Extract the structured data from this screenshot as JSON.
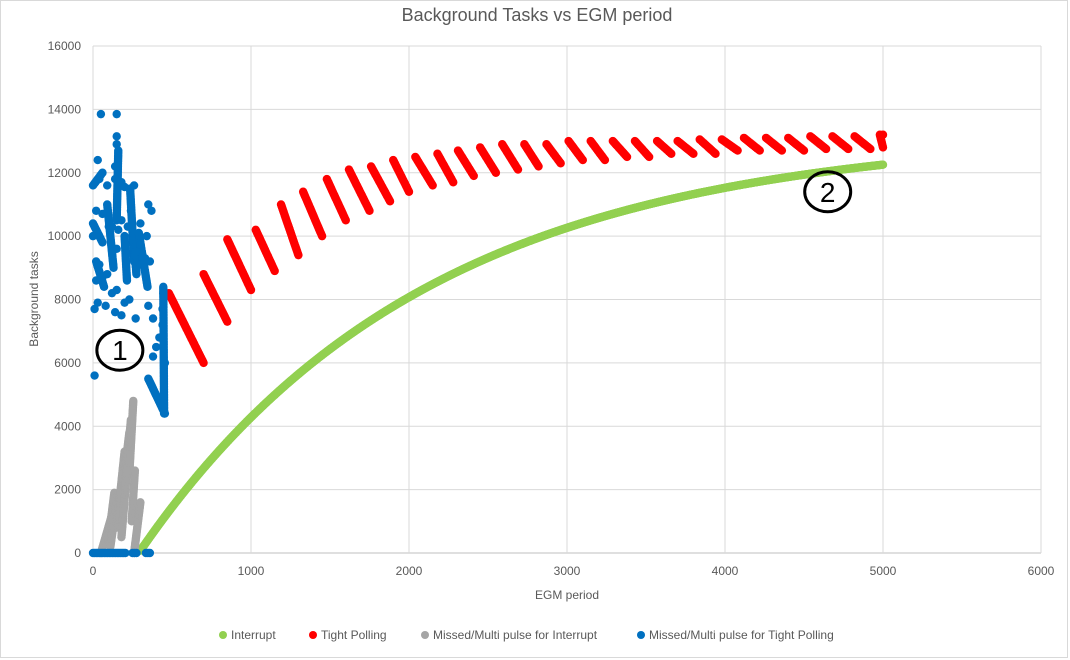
{
  "chart_data": {
    "type": "scatter",
    "title": "Background Tasks vs EGM period",
    "xlabel": "EGM period",
    "ylabel": "Background tasks",
    "xlim": [
      0,
      6000
    ],
    "ylim": [
      0,
      16000
    ],
    "x_ticks": [
      "0",
      "1000",
      "2000",
      "3000",
      "4000",
      "5000",
      "6000"
    ],
    "y_ticks": [
      "0",
      "2000",
      "4000",
      "6000",
      "8000",
      "10000",
      "12000",
      "14000",
      "16000"
    ],
    "grid": true,
    "legend_position": "bottom",
    "series": [
      {
        "name": "Interrupt",
        "color": "#92d050",
        "curve": {
          "kind": "saturating",
          "x_start": 300,
          "x_end": 5000,
          "y_asymptote": 13250,
          "x_zero": 290,
          "c": 1820
        }
      },
      {
        "name": "Tight Polling",
        "color": "#ff0000",
        "segments": [
          [
            [
              480,
              8200
            ],
            [
              700,
              6000
            ]
          ],
          [
            [
              700,
              8800
            ],
            [
              850,
              7300
            ]
          ],
          [
            [
              850,
              9900
            ],
            [
              1000,
              8300
            ]
          ],
          [
            [
              1030,
              10200
            ],
            [
              1150,
              8900
            ]
          ],
          [
            [
              1190,
              11000
            ],
            [
              1300,
              9400
            ]
          ],
          [
            [
              1330,
              11400
            ],
            [
              1450,
              10000
            ]
          ],
          [
            [
              1480,
              11800
            ],
            [
              1600,
              10500
            ]
          ],
          [
            [
              1620,
              12100
            ],
            [
              1750,
              10800
            ]
          ],
          [
            [
              1760,
              12200
            ],
            [
              1880,
              11100
            ]
          ],
          [
            [
              1900,
              12400
            ],
            [
              2000,
              11400
            ]
          ],
          [
            [
              2040,
              12500
            ],
            [
              2150,
              11600
            ]
          ],
          [
            [
              2180,
              12600
            ],
            [
              2280,
              11700
            ]
          ],
          [
            [
              2310,
              12700
            ],
            [
              2410,
              11900
            ]
          ],
          [
            [
              2450,
              12800
            ],
            [
              2550,
              12000
            ]
          ],
          [
            [
              2590,
              12900
            ],
            [
              2690,
              12100
            ]
          ],
          [
            [
              2730,
              12900
            ],
            [
              2820,
              12200
            ]
          ],
          [
            [
              2870,
              12900
            ],
            [
              2960,
              12300
            ]
          ],
          [
            [
              3010,
              13000
            ],
            [
              3100,
              12400
            ]
          ],
          [
            [
              3150,
              13000
            ],
            [
              3240,
              12400
            ]
          ],
          [
            [
              3290,
              13000
            ],
            [
              3380,
              12500
            ]
          ],
          [
            [
              3430,
              13000
            ],
            [
              3520,
              12500
            ]
          ],
          [
            [
              3570,
              13000
            ],
            [
              3660,
              12600
            ]
          ],
          [
            [
              3700,
              13000
            ],
            [
              3800,
              12600
            ]
          ],
          [
            [
              3840,
              13050
            ],
            [
              3940,
              12600
            ]
          ],
          [
            [
              3980,
              13050
            ],
            [
              4080,
              12700
            ]
          ],
          [
            [
              4120,
              13100
            ],
            [
              4220,
              12700
            ]
          ],
          [
            [
              4260,
              13100
            ],
            [
              4360,
              12700
            ]
          ],
          [
            [
              4400,
              13100
            ],
            [
              4500,
              12700
            ]
          ],
          [
            [
              4540,
              13150
            ],
            [
              4640,
              12750
            ]
          ],
          [
            [
              4680,
              13150
            ],
            [
              4780,
              12750
            ]
          ],
          [
            [
              4820,
              13150
            ],
            [
              4920,
              12750
            ]
          ],
          [
            [
              4980,
              13200
            ],
            [
              5000,
              12800
            ]
          ]
        ],
        "points": [
          [
            5000,
            13200
          ]
        ]
      },
      {
        "name": "Missed/Multi pulse for Interrupt",
        "color": "#a5a5a5",
        "segments": [
          [
            [
              50,
              0
            ],
            [
              120,
              1200
            ]
          ],
          [
            [
              95,
              300
            ],
            [
              135,
              1900
            ]
          ],
          [
            [
              110,
              200
            ],
            [
              155,
              1800
            ]
          ],
          [
            [
              150,
              800
            ],
            [
              200,
              3200
            ]
          ],
          [
            [
              175,
              1500
            ],
            [
              230,
              3800
            ]
          ],
          [
            [
              200,
              2000
            ],
            [
              240,
              4200
            ]
          ],
          [
            [
              230,
              2500
            ],
            [
              255,
              4800
            ]
          ],
          [
            [
              245,
              1000
            ],
            [
              265,
              2600
            ]
          ],
          [
            [
              180,
              500
            ],
            [
              215,
              2600
            ]
          ],
          [
            [
              260,
              0
            ],
            [
              300,
              1600
            ]
          ]
        ]
      },
      {
        "name": "Missed/Multi pulse for Tight Polling",
        "color": "#0070c0",
        "segments": [
          [
            [
              0,
              0
            ],
            [
              205,
              0
            ]
          ],
          [
            [
              250,
              0
            ],
            [
              275,
              0
            ]
          ],
          [
            [
              335,
              0
            ],
            [
              360,
              0
            ]
          ],
          [
            [
              350,
              5500
            ],
            [
              455,
              4400
            ]
          ],
          [
            [
              445,
              8400
            ],
            [
              450,
              4400
            ]
          ],
          [
            [
              200,
              10000
            ],
            [
              215,
              8600
            ]
          ],
          [
            [
              235,
              11500
            ],
            [
              260,
              9200
            ]
          ],
          [
            [
              255,
              10000
            ],
            [
              275,
              8800
            ]
          ],
          [
            [
              290,
              10100
            ],
            [
              345,
              8400
            ]
          ],
          [
            [
              90,
              11000
            ],
            [
              130,
              9000
            ]
          ],
          [
            [
              0,
              11600
            ],
            [
              60,
              12000
            ]
          ],
          [
            [
              0,
              10400
            ],
            [
              60,
              9800
            ]
          ],
          [
            [
              150,
              10500
            ],
            [
              160,
              12700
            ]
          ],
          [
            [
              20,
              9200
            ],
            [
              70,
              8400
            ]
          ]
        ],
        "points": [
          [
            50,
            13850
          ],
          [
            150,
            13850
          ],
          [
            150,
            13150
          ],
          [
            150,
            12900
          ],
          [
            30,
            12400
          ],
          [
            140,
            12200
          ],
          [
            180,
            11700
          ],
          [
            260,
            11600
          ],
          [
            200,
            11550
          ],
          [
            140,
            11800
          ],
          [
            90,
            11600
          ],
          [
            40,
            11800
          ],
          [
            20,
            10800
          ],
          [
            60,
            10700
          ],
          [
            100,
            10300
          ],
          [
            120,
            10300
          ],
          [
            160,
            10200
          ],
          [
            180,
            10500
          ],
          [
            220,
            10300
          ],
          [
            240,
            10800
          ],
          [
            300,
            10400
          ],
          [
            340,
            10000
          ],
          [
            350,
            11000
          ],
          [
            370,
            10800
          ],
          [
            360,
            9200
          ],
          [
            330,
            9300
          ],
          [
            300,
            9100
          ],
          [
            20,
            8600
          ],
          [
            60,
            8700
          ],
          [
            90,
            8800
          ],
          [
            120,
            8200
          ],
          [
            150,
            8300
          ],
          [
            180,
            7500
          ],
          [
            200,
            7900
          ],
          [
            230,
            8000
          ],
          [
            270,
            7400
          ],
          [
            10,
            7700
          ],
          [
            30,
            7900
          ],
          [
            80,
            7800
          ],
          [
            140,
            7600
          ],
          [
            10,
            5600
          ],
          [
            380,
            6200
          ],
          [
            400,
            6500
          ],
          [
            420,
            6800
          ],
          [
            440,
            7200
          ],
          [
            455,
            6000
          ],
          [
            350,
            7800
          ],
          [
            440,
            7700
          ],
          [
            380,
            7400
          ],
          [
            445,
            8200
          ],
          [
            150,
            9600
          ],
          [
            120,
            9600
          ],
          [
            40,
            9100
          ],
          [
            0,
            10000
          ],
          [
            270,
            9500
          ]
        ]
      }
    ],
    "annotations": [
      {
        "text": "1",
        "x": 170,
        "y": 6400
      },
      {
        "text": "2",
        "x": 4650,
        "y": 11400
      }
    ]
  }
}
